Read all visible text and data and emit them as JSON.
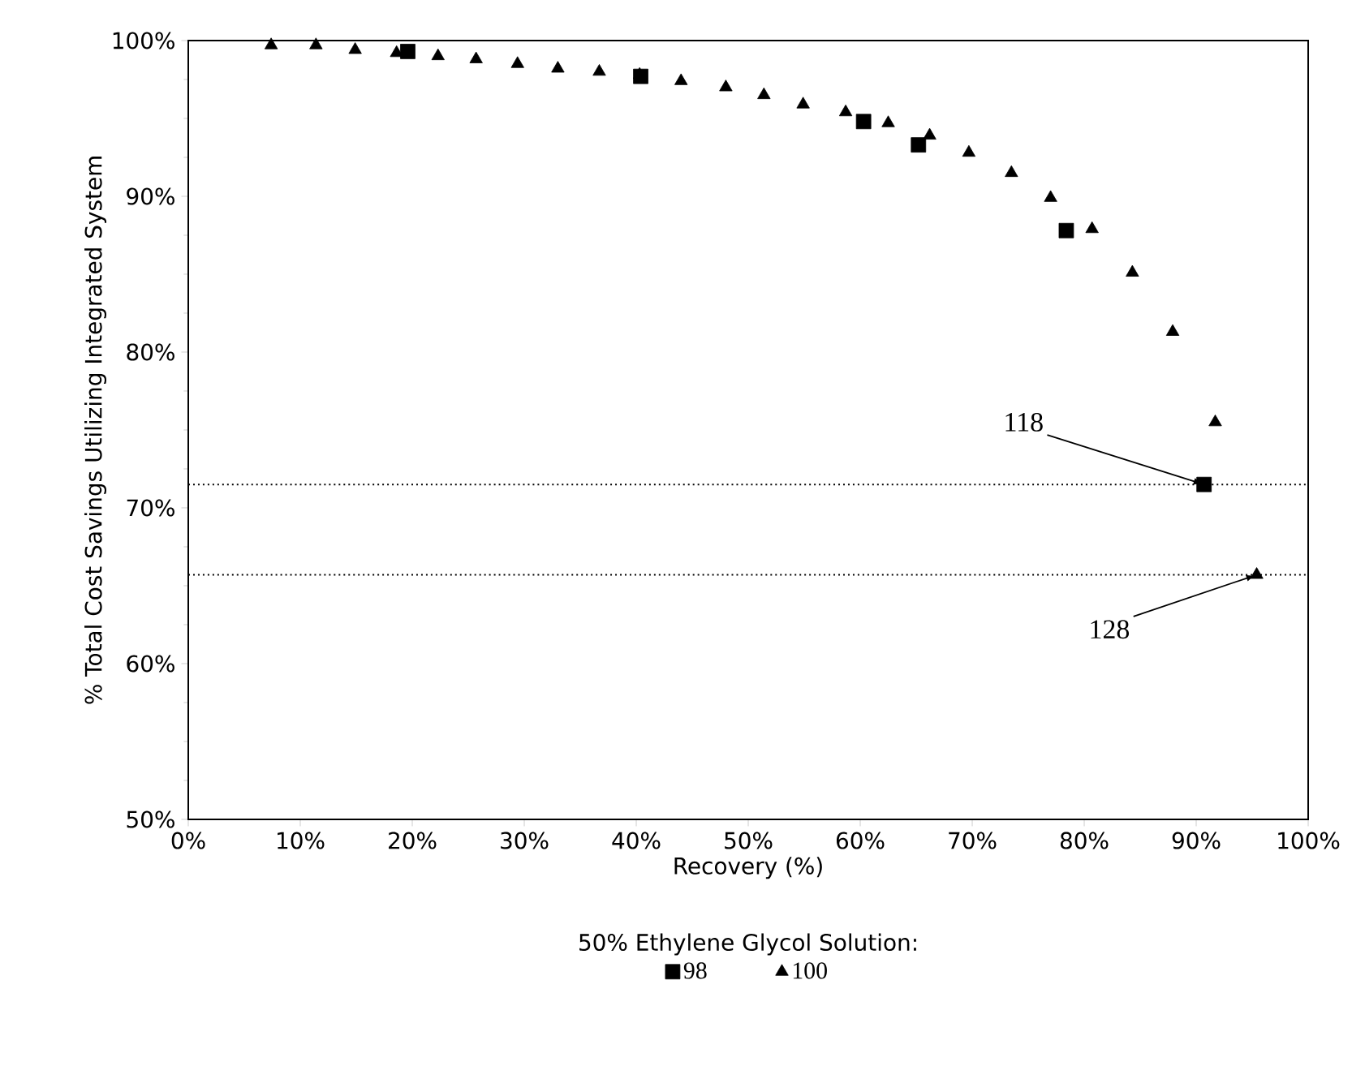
{
  "chart_data": {
    "type": "scatter",
    "xlabel": "Recovery (%)",
    "ylabel": "% Total Cost Savings Utilizing Integrated System",
    "legend_title": "50% Ethylene Glycol Solution:",
    "legend": "bottom",
    "grid": false,
    "xlim": [
      0,
      100
    ],
    "ylim": [
      50,
      100
    ],
    "xticks": [
      {
        "value": 0,
        "label": "0%"
      },
      {
        "value": 10,
        "label": "10%"
      },
      {
        "value": 20,
        "label": "20%"
      },
      {
        "value": 30,
        "label": "30%"
      },
      {
        "value": 40,
        "label": "40%"
      },
      {
        "value": 50,
        "label": "50%"
      },
      {
        "value": 60,
        "label": "60%"
      },
      {
        "value": 70,
        "label": "70%"
      },
      {
        "value": 80,
        "label": "80%"
      },
      {
        "value": 90,
        "label": "90%"
      },
      {
        "value": 100,
        "label": "100%"
      }
    ],
    "yticks": [
      {
        "value": 50,
        "label": "50%"
      },
      {
        "value": 60,
        "label": "60%"
      },
      {
        "value": 70,
        "label": "70%"
      },
      {
        "value": 80,
        "label": "80%"
      },
      {
        "value": 90,
        "label": "90%"
      },
      {
        "value": 100,
        "label": "100%"
      }
    ],
    "series": [
      {
        "name": "98",
        "color": "#000000",
        "marker": "square",
        "x": [
          19.6,
          40.4,
          60.3,
          65.2,
          78.4,
          90.7
        ],
        "values": [
          99.3,
          97.7,
          94.8,
          93.3,
          87.8,
          71.5
        ]
      },
      {
        "name": "100",
        "color": "#000000",
        "marker": "triangle",
        "x": [
          7.4,
          11.4,
          14.9,
          18.6,
          22.3,
          25.7,
          29.4,
          33.0,
          36.7,
          40.3,
          44.0,
          48.0,
          51.4,
          54.9,
          58.7,
          62.5,
          66.2,
          69.7,
          73.5,
          77.0,
          80.7,
          84.3,
          87.9,
          91.7,
          95.4
        ],
        "values": [
          99.7,
          99.7,
          99.4,
          99.2,
          99.0,
          98.8,
          98.5,
          98.2,
          98.0,
          97.8,
          97.4,
          97.0,
          96.5,
          95.9,
          95.4,
          94.7,
          93.9,
          92.8,
          91.5,
          89.9,
          87.9,
          85.1,
          81.3,
          75.5,
          65.7
        ]
      }
    ],
    "ref_lines": [
      {
        "axis": "y",
        "value": 71.5,
        "line_style": "dotted"
      },
      {
        "axis": "y",
        "value": 65.7,
        "line_style": "dotted"
      }
    ],
    "annotations": [
      {
        "text": "118",
        "x": 90.7,
        "y": 71.5
      },
      {
        "text": "128",
        "x": 95.4,
        "y": 65.7
      }
    ]
  }
}
